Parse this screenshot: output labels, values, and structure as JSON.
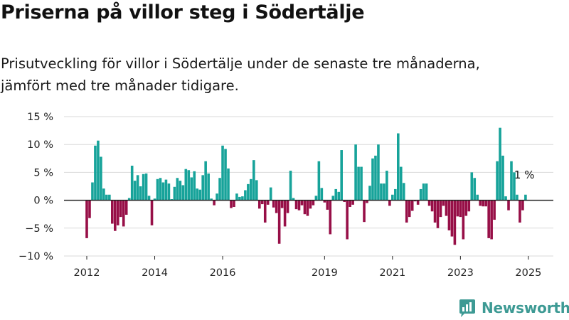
{
  "title": "Priserna på villor steg i Södertälje",
  "subtitle_line1": "Prisutveckling för villor i Södertälje under de senaste tre månaderna,",
  "subtitle_line2": "jämfört med tre månader tidigare.",
  "brand": "Newsworthy",
  "icons": {
    "logo": "newsworthy-chart-icon"
  },
  "colors": {
    "positive": "#17a39a",
    "negative": "#970f47",
    "grid": "#d9d9d9",
    "zero": "#222222",
    "brand": "#3d9a94"
  },
  "chart_data": {
    "type": "bar",
    "title": "Priserna på villor steg i Södertälje",
    "xlabel": "",
    "ylabel": "",
    "ylim": [
      -10,
      15
    ],
    "y_ticks": [
      15,
      10,
      5,
      0,
      -5,
      -10
    ],
    "y_tick_labels": [
      "15 %",
      "10 %",
      "5 %",
      "0 %",
      "−5 %",
      "−10 %"
    ],
    "x_ticks": [
      2012,
      2014,
      2016,
      2019,
      2021,
      2023,
      2025
    ],
    "x_tick_labels": [
      "2012",
      "2014",
      "2016",
      "2019",
      "2021",
      "2023",
      "2025"
    ],
    "x_start": "2012-01",
    "period": "monthly",
    "annotation": "1 %",
    "grid": true,
    "values": [
      -6.8,
      -3.2,
      3.2,
      9.8,
      10.7,
      7.8,
      2.1,
      1.0,
      1.0,
      -4.2,
      -5.5,
      -4.5,
      -3.0,
      -4.7,
      -2.6,
      0.4,
      6.2,
      3.5,
      4.5,
      2.5,
      4.7,
      4.8,
      0.8,
      -4.5,
      0.3,
      3.8,
      4.0,
      3.2,
      3.7,
      3.0,
      0.2,
      2.4,
      4.0,
      3.5,
      2.7,
      5.6,
      5.4,
      4.1,
      5.2,
      2.1,
      1.9,
      4.5,
      7.0,
      4.8,
      0.3,
      -0.9,
      1.2,
      4.0,
      9.8,
      9.2,
      5.7,
      -1.4,
      -1.2,
      1.2,
      0.6,
      0.7,
      1.8,
      2.9,
      3.8,
      7.2,
      3.6,
      -1.5,
      -0.7,
      -4.0,
      -0.8,
      2.3,
      -1.3,
      -2.3,
      -7.8,
      -1.4,
      -4.7,
      -2.3,
      5.3,
      0.4,
      -1.6,
      -1.8,
      -0.9,
      -2.5,
      -2.8,
      -1.5,
      -0.9,
      0.8,
      7.0,
      2.2,
      -0.4,
      -1.7,
      -6.1,
      0.8,
      2.0,
      1.5,
      9.0,
      -0.3,
      -7.0,
      -1.2,
      -0.8,
      10.0,
      6.0,
      6.0,
      -3.9,
      -0.5,
      2.6,
      7.5,
      8.0,
      10.0,
      3.0,
      3.0,
      5.3,
      -1.0,
      1.0,
      2.0,
      12.0,
      6.0,
      3.1,
      -4.0,
      -3.0,
      -1.9,
      -0.2,
      -0.8,
      2.0,
      3.0,
      3.0,
      -1.0,
      -2.0,
      -4.0,
      -5.0,
      -3.0,
      -1.0,
      -2.8,
      -5.4,
      -6.5,
      -8.0,
      -2.9,
      -3.0,
      -7.0,
      -2.8,
      -2.0,
      5.0,
      4.0,
      1.0,
      -1.0,
      -1.1,
      -1.1,
      -6.8,
      -7.0,
      -3.5,
      7.0,
      13.0,
      8.0,
      0.7,
      -1.8,
      7.0,
      5.0,
      1.0,
      -4.0,
      -1.8,
      1.0
    ]
  }
}
